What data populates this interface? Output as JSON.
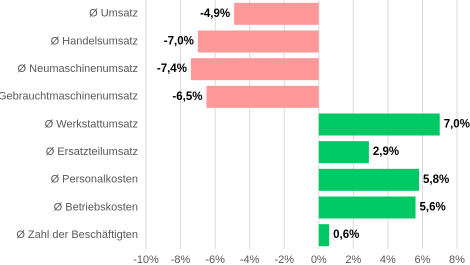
{
  "chart_data": {
    "type": "hbar",
    "categories": [
      "Ø Umsatz",
      "Ø Handelsumsatz",
      "Ø Neumaschinenumsatz",
      "Ø Gebrauchtmaschinenumsatz",
      "Ø Werkstattumsatz",
      "Ø Ersatzteilumsatz",
      "Ø Personalkosten",
      "Ø Betriebskosten",
      "Ø Zahl der Beschäftigten"
    ],
    "values": [
      -4.9,
      -7.0,
      -7.4,
      -6.5,
      7.0,
      2.9,
      5.8,
      5.6,
      0.6
    ],
    "value_labels": [
      "-4,9%",
      "-7,0%",
      "-7,4%",
      "-6,5%",
      "7,0%",
      "2,9%",
      "5,8%",
      "5,6%",
      "0,6%"
    ],
    "colors": [
      "#ff9999",
      "#ff9999",
      "#ff9999",
      "#ff9999",
      "#00c864",
      "#00c864",
      "#00c864",
      "#00c864",
      "#00c864"
    ],
    "xlim": [
      -10,
      8
    ],
    "xticks": [
      {
        "value": -10,
        "label": "-10%"
      },
      {
        "value": -8,
        "label": "-8%"
      },
      {
        "value": -6,
        "label": "-6%"
      },
      {
        "value": -4,
        "label": "-4%"
      },
      {
        "value": -2,
        "label": "-2%"
      },
      {
        "value": 0,
        "label": "0%"
      },
      {
        "value": 2,
        "label": "2%"
      },
      {
        "value": 4,
        "label": "4%"
      },
      {
        "value": 6,
        "label": "6%"
      },
      {
        "value": 8,
        "label": "8%"
      }
    ],
    "grid": true
  }
}
